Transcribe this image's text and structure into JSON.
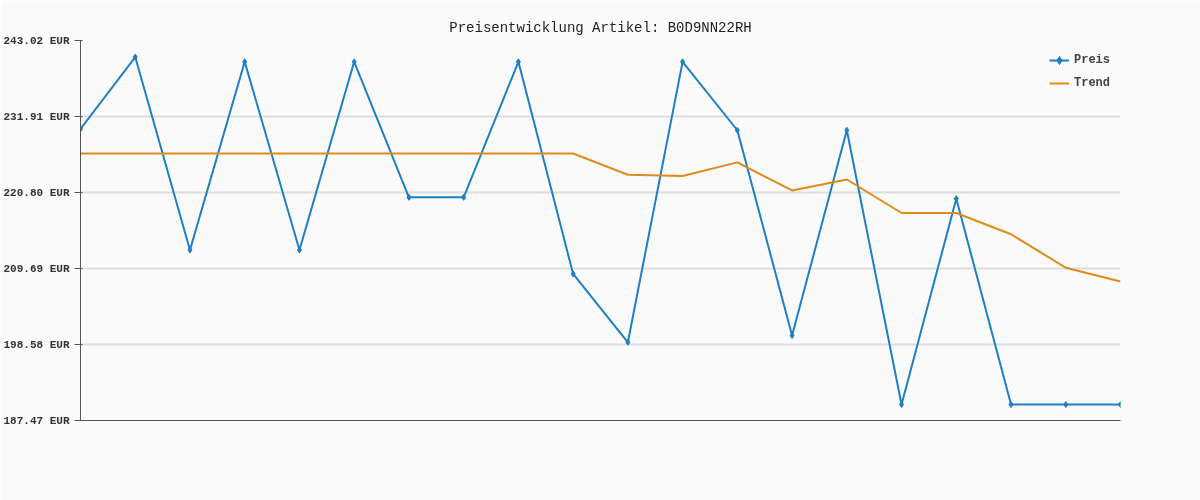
{
  "chart_data": {
    "type": "line",
    "title": "Preisentwicklung Artikel: B0D9NN22RH",
    "categories": [
      null,
      null,
      null,
      null,
      null,
      null,
      null,
      null,
      null,
      null,
      null,
      null,
      null,
      null,
      null,
      null,
      null,
      null,
      null,
      null
    ],
    "series": [
      {
        "name": "Preis",
        "color": "#1f7fc4",
        "marker": "diamond",
        "values": [
          230.1,
          240.6,
          212.4,
          239.9,
          212.4,
          239.9,
          220.1,
          220.1,
          239.9,
          208.9,
          198.9,
          239.9,
          229.9,
          199.9,
          229.9,
          189.8,
          219.9,
          189.8,
          189.8,
          189.8
        ]
      },
      {
        "name": "Trend",
        "color": "#e08a1e",
        "marker": "none",
        "values": [
          226.5,
          226.5,
          226.5,
          226.5,
          226.5,
          226.5,
          226.5,
          226.5,
          226.5,
          226.5,
          223.4,
          223.2,
          225.2,
          221.1,
          222.7,
          217.8,
          217.8,
          214.7,
          209.8,
          207.8
        ]
      }
    ],
    "ylim": [
      187.47,
      243.02
    ],
    "yticks": [
      {
        "value": 187.47,
        "label": "187.47 EUR"
      },
      {
        "value": 198.58,
        "label": "198.58 EUR"
      },
      {
        "value": 209.69,
        "label": "209.69 EUR"
      },
      {
        "value": 220.8,
        "label": "220.80 EUR"
      },
      {
        "value": 231.91,
        "label": "231.91 EUR"
      },
      {
        "value": 243.02,
        "label": "243.02 EUR"
      }
    ],
    "grid": "y",
    "legend": "top right",
    "tick_labels": "y"
  }
}
